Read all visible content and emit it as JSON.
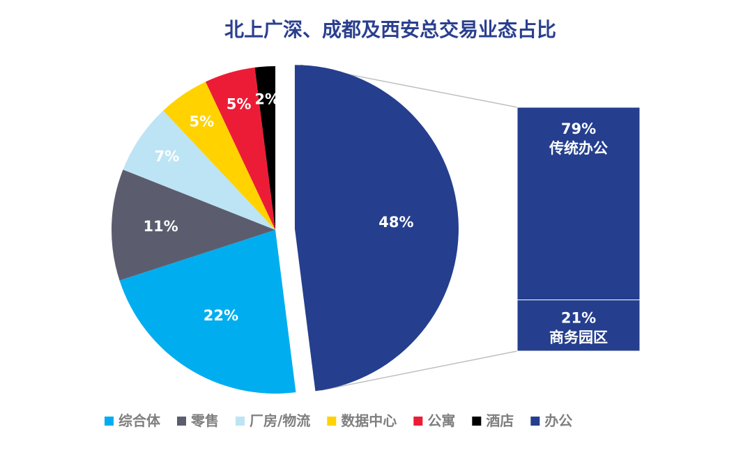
{
  "chart_data": {
    "type": "pie",
    "title": "北上广深、成都及西安总交易业态占比",
    "slices": [
      {
        "name": "办公",
        "value": 48,
        "label": "48%",
        "color": "#253f8e"
      },
      {
        "name": "综合体",
        "value": 22,
        "label": "22%",
        "color": "#00aeef"
      },
      {
        "name": "零售",
        "value": 11,
        "label": "11%",
        "color": "#5b5d6f"
      },
      {
        "name": "厂房/物流",
        "value": 7,
        "label": "7%",
        "color": "#bde4f4"
      },
      {
        "name": "数据中心",
        "value": 5,
        "label": "5%",
        "color": "#ffd200"
      },
      {
        "name": "公寓",
        "value": 5,
        "label": "5%",
        "color": "#ed1c36"
      },
      {
        "name": "酒店",
        "value": 2,
        "label": "2%",
        "color": "#000000"
      }
    ],
    "exploded_slice": "办公",
    "breakdown": {
      "of": "办公",
      "segments": [
        {
          "name": "传统办公",
          "value": 79,
          "label": "79%",
          "color": "#253f8e"
        },
        {
          "name": "商务园区",
          "value": 21,
          "label": "21%",
          "color": "#253f8e"
        }
      ]
    },
    "legend": {
      "position": "bottom",
      "items": [
        "综合体",
        "零售",
        "厂房/物流",
        "数据中心",
        "公寓",
        "酒店",
        "办公"
      ]
    }
  }
}
